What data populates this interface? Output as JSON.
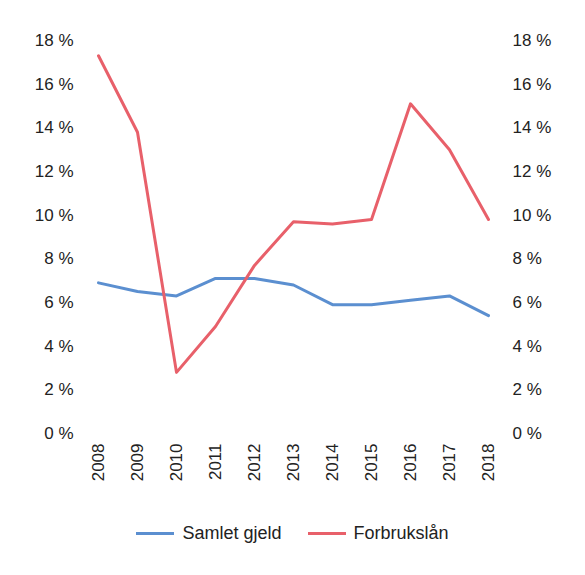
{
  "chart_data": {
    "type": "line",
    "categories": [
      "2008",
      "2009",
      "2010",
      "2011",
      "2012",
      "2013",
      "2014",
      "2015",
      "2016",
      "2017",
      "2018"
    ],
    "series": [
      {
        "name": "Samlet gjeld",
        "color": "#5b8fd0",
        "values": [
          6.9,
          6.5,
          6.3,
          7.1,
          7.1,
          6.8,
          5.9,
          5.9,
          6.1,
          6.3,
          5.4
        ]
      },
      {
        "name": "Forbrukslån",
        "color": "#e8606a",
        "values": [
          17.3,
          13.8,
          2.8,
          4.9,
          7.7,
          9.7,
          9.6,
          9.8,
          15.1,
          13.0,
          9.8
        ]
      }
    ],
    "ylim": [
      0,
      18
    ],
    "yticks": [
      {
        "value": 0,
        "label": "0 %"
      },
      {
        "value": 2,
        "label": "2 %"
      },
      {
        "value": 4,
        "label": "4 %"
      },
      {
        "value": 6,
        "label": "6 %"
      },
      {
        "value": 8,
        "label": "8 %"
      },
      {
        "value": 10,
        "label": "10 %"
      },
      {
        "value": 12,
        "label": "12 %"
      },
      {
        "value": 14,
        "label": "14 %"
      },
      {
        "value": 16,
        "label": "16 %"
      },
      {
        "value": 18,
        "label": "18 %"
      }
    ],
    "y2lim": [
      0,
      18
    ],
    "y2ticks": [
      {
        "value": 0,
        "label": "0 %"
      },
      {
        "value": 2,
        "label": "2 %"
      },
      {
        "value": 4,
        "label": "4 %"
      },
      {
        "value": 6,
        "label": "6 %"
      },
      {
        "value": 8,
        "label": "8 %"
      },
      {
        "value": 10,
        "label": "10 %"
      },
      {
        "value": 12,
        "label": "12 %"
      },
      {
        "value": 14,
        "label": "14 %"
      },
      {
        "value": 16,
        "label": "16 %"
      },
      {
        "value": 18,
        "label": "18 %"
      }
    ],
    "grid": false,
    "legend": "bottom"
  }
}
